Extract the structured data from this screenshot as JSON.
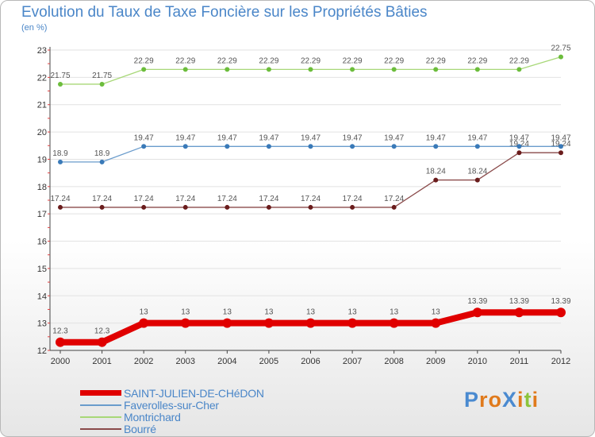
{
  "chart_data": {
    "type": "line",
    "title": "Evolution du Taux de Taxe Foncière sur les Propriétés Bâties",
    "ylabel": "(en %)",
    "xlabel": "",
    "categories": [
      "2000",
      "2001",
      "2002",
      "2003",
      "2004",
      "2005",
      "2006",
      "2007",
      "2008",
      "2009",
      "2010",
      "2011",
      "2012"
    ],
    "ylim": [
      12,
      23
    ],
    "yticks": [
      "12",
      "13",
      "14",
      "15",
      "16",
      "17",
      "18",
      "19",
      "20",
      "21",
      "22",
      "23"
    ],
    "series": [
      {
        "name": "SAINT-JULIEN-DE-CHéDON",
        "color": "#e00000",
        "values": [
          12.3,
          12.3,
          13,
          13,
          13,
          13,
          13,
          13,
          13,
          13,
          13.39,
          13.39,
          13.39
        ],
        "labels": [
          "12.3",
          "12.3",
          "13",
          "13",
          "13",
          "13",
          "13",
          "13",
          "13",
          "13",
          "13.39",
          "13.39",
          "13.39"
        ]
      },
      {
        "name": "Faverolles-sur-Cher",
        "color": "#6a9ccc",
        "point_color": "#3a7ab8",
        "values": [
          18.9,
          18.9,
          19.47,
          19.47,
          19.47,
          19.47,
          19.47,
          19.47,
          19.47,
          19.47,
          19.47,
          19.47,
          19.47
        ],
        "labels": [
          "18.9",
          "18.9",
          "19.47",
          "19.47",
          "19.47",
          "19.47",
          "19.47",
          "19.47",
          "19.47",
          "19.47",
          "19.47",
          "19.47",
          "19.47"
        ]
      },
      {
        "name": "Montrichard",
        "color": "#a8d878",
        "point_color": "#6cbd3c",
        "values": [
          21.75,
          21.75,
          22.29,
          22.29,
          22.29,
          22.29,
          22.29,
          22.29,
          22.29,
          22.29,
          22.29,
          22.29,
          22.75
        ],
        "labels": [
          "21.75",
          "21.75",
          "22.29",
          "22.29",
          "22.29",
          "22.29",
          "22.29",
          "22.29",
          "22.29",
          "22.29",
          "22.29",
          "22.29",
          "22.75"
        ]
      },
      {
        "name": "Bourré",
        "color": "#8a4a4a",
        "point_color": "#6a1c1c",
        "values": [
          17.24,
          17.24,
          17.24,
          17.24,
          17.24,
          17.24,
          17.24,
          17.24,
          17.24,
          18.24,
          18.24,
          19.24,
          19.24
        ],
        "labels": [
          "17.24",
          "17.24",
          "17.24",
          "17.24",
          "17.24",
          "17.24",
          "17.24",
          "17.24",
          "17.24",
          "18.24",
          "18.24",
          "19.24",
          "19.24"
        ]
      }
    ],
    "legend_position": "bottom-left",
    "grid": true
  },
  "logo": {
    "text": "ProXiti",
    "letters": [
      "P",
      "r",
      "o",
      "X",
      "i",
      "t",
      "i"
    ],
    "colors": [
      "#4a8ad0",
      "#e07a1c",
      "#e07a1c",
      "#4a8ad0",
      "#e07a1c",
      "#8cc43c",
      "#e07a1c"
    ]
  }
}
